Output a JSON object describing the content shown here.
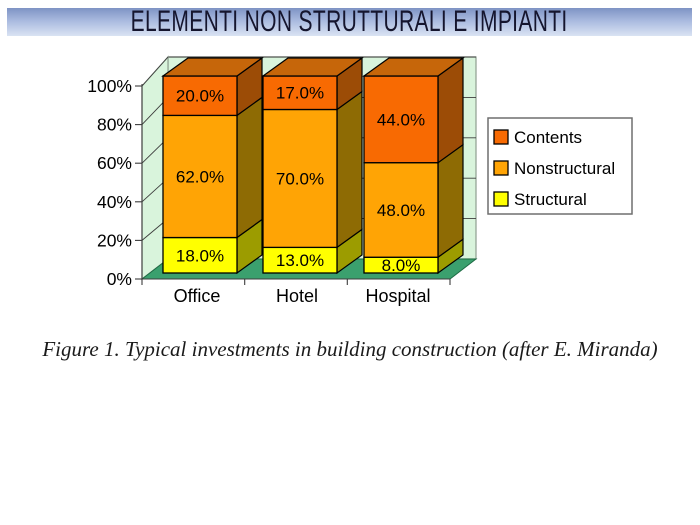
{
  "slide": {
    "title": "ELEMENTI NON STRUTTURALI E IMPIANTI",
    "caption": "Figure 1. Typical investments in building construction (after E. Miranda)"
  },
  "chart_data": {
    "type": "bar",
    "subtype": "3d-stacked-100-percent",
    "categories": [
      "Office",
      "Hotel",
      "Hospital"
    ],
    "series": [
      {
        "name": "Structural",
        "values": [
          18.0,
          13.0,
          8.0
        ],
        "color": "#FFFF00",
        "side_color": "#9C9C00",
        "top_color": "#CDCD00"
      },
      {
        "name": "Nonstructural",
        "values": [
          62.0,
          70.0,
          48.0
        ],
        "color": "#FFA405",
        "side_color": "#8E6B04",
        "top_color": "#C98204"
      },
      {
        "name": "Contents",
        "values": [
          20.0,
          17.0,
          44.0
        ],
        "color": "#F86A02",
        "side_color": "#9C4C06",
        "top_color": "#C6660A"
      }
    ],
    "stack_order": "bottom-to-top",
    "label_format": "0.0%",
    "ylim": [
      0,
      100
    ],
    "ytick_labels": [
      "0%",
      "20%",
      "40%",
      "60%",
      "80%",
      "100%"
    ],
    "legend": {
      "position": "right",
      "entries": [
        "Contents",
        "Nonstructural",
        "Structural"
      ]
    },
    "grid": true,
    "wall_color": "#D9F4DC",
    "floor_color": "#3BA06E",
    "axis_color": "#3C3C3C",
    "grid_color": "#3C3C3C",
    "outline_color": "#000000",
    "legend_border_color": "#6F6F6F"
  }
}
